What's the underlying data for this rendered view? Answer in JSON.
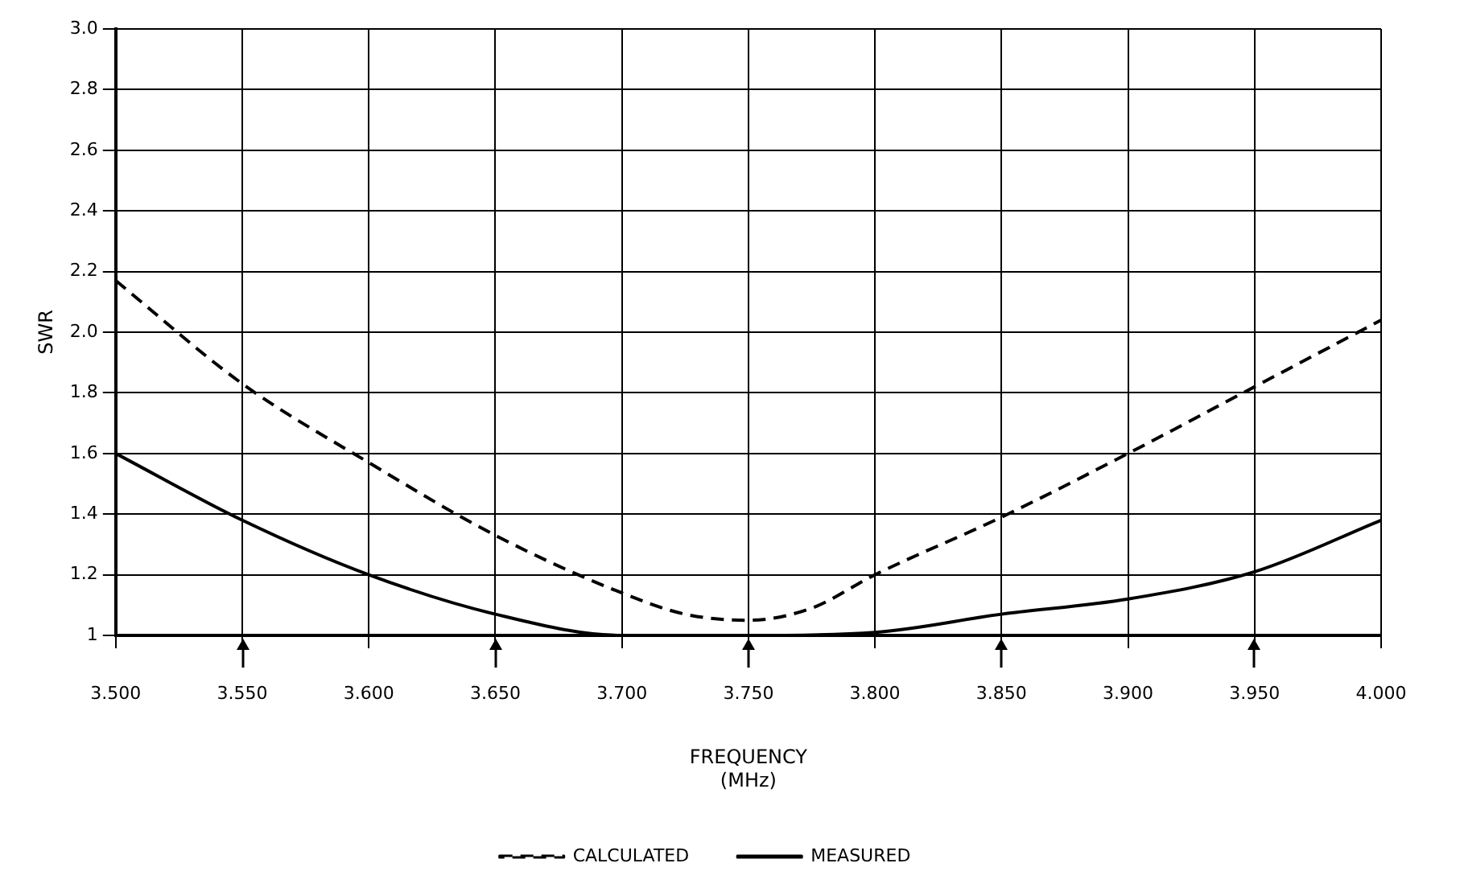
{
  "chart_data": {
    "type": "line",
    "xlabel": "FREQUENCY (MHz)",
    "ylabel": "SWR",
    "xlim": [
      3.5,
      4.0
    ],
    "xticks": [
      {
        "value": 3.5,
        "label": "3.500"
      },
      {
        "value": 3.55,
        "label": "3.550"
      },
      {
        "value": 3.6,
        "label": "3.600"
      },
      {
        "value": 3.65,
        "label": "3.650"
      },
      {
        "value": 3.7,
        "label": "3.700"
      },
      {
        "value": 3.75,
        "label": "3.750"
      },
      {
        "value": 3.8,
        "label": "3.800"
      },
      {
        "value": 3.85,
        "label": "3.850"
      },
      {
        "value": 3.9,
        "label": "3.900"
      },
      {
        "value": 3.95,
        "label": "3.950"
      },
      {
        "value": 4.0,
        "label": "4.000"
      }
    ],
    "ylim": [
      1,
      3.0
    ],
    "yticks": [
      1,
      {
        "value": 1.2,
        "label": "1.2"
      },
      {
        "value": 1.4,
        "label": "1.4"
      },
      {
        "value": 1.6,
        "label": "1.6"
      },
      {
        "value": 1.8,
        "label": "1.8"
      },
      {
        "value": 2.0,
        "label": "2.0"
      },
      {
        "value": 2.2,
        "label": "2.2"
      },
      {
        "value": 2.4,
        "label": "2.4"
      },
      {
        "value": 2.6,
        "label": "2.6"
      },
      {
        "value": 2.8,
        "label": "2.8"
      },
      {
        "value": 3.0,
        "label": "3.0"
      }
    ],
    "grid": true,
    "legend": "bottom",
    "marker": "none",
    "series": [
      {
        "name": "CALCULATED",
        "color": "#000000",
        "line_style": "dashed",
        "x": [
          3.5,
          3.55,
          3.6,
          3.65,
          3.7,
          3.725,
          3.75,
          3.775,
          3.8,
          3.85,
          3.9,
          3.95,
          4.0
        ],
        "values": [
          2.17,
          1.83,
          1.57,
          1.33,
          1.14,
          1.07,
          1.05,
          1.09,
          1.2,
          1.39,
          1.6,
          1.82,
          2.04
        ]
      },
      {
        "name": "MEASURED",
        "color": "#000000",
        "line_style": "solid",
        "x": [
          3.5,
          3.55,
          3.6,
          3.65,
          3.7,
          3.75,
          3.8,
          3.85,
          3.9,
          3.95,
          4.0
        ],
        "values": [
          1.6,
          1.38,
          1.2,
          1.07,
          1.0,
          1.0,
          1.01,
          1.07,
          1.12,
          1.21,
          1.38
        ]
      }
    ]
  }
}
